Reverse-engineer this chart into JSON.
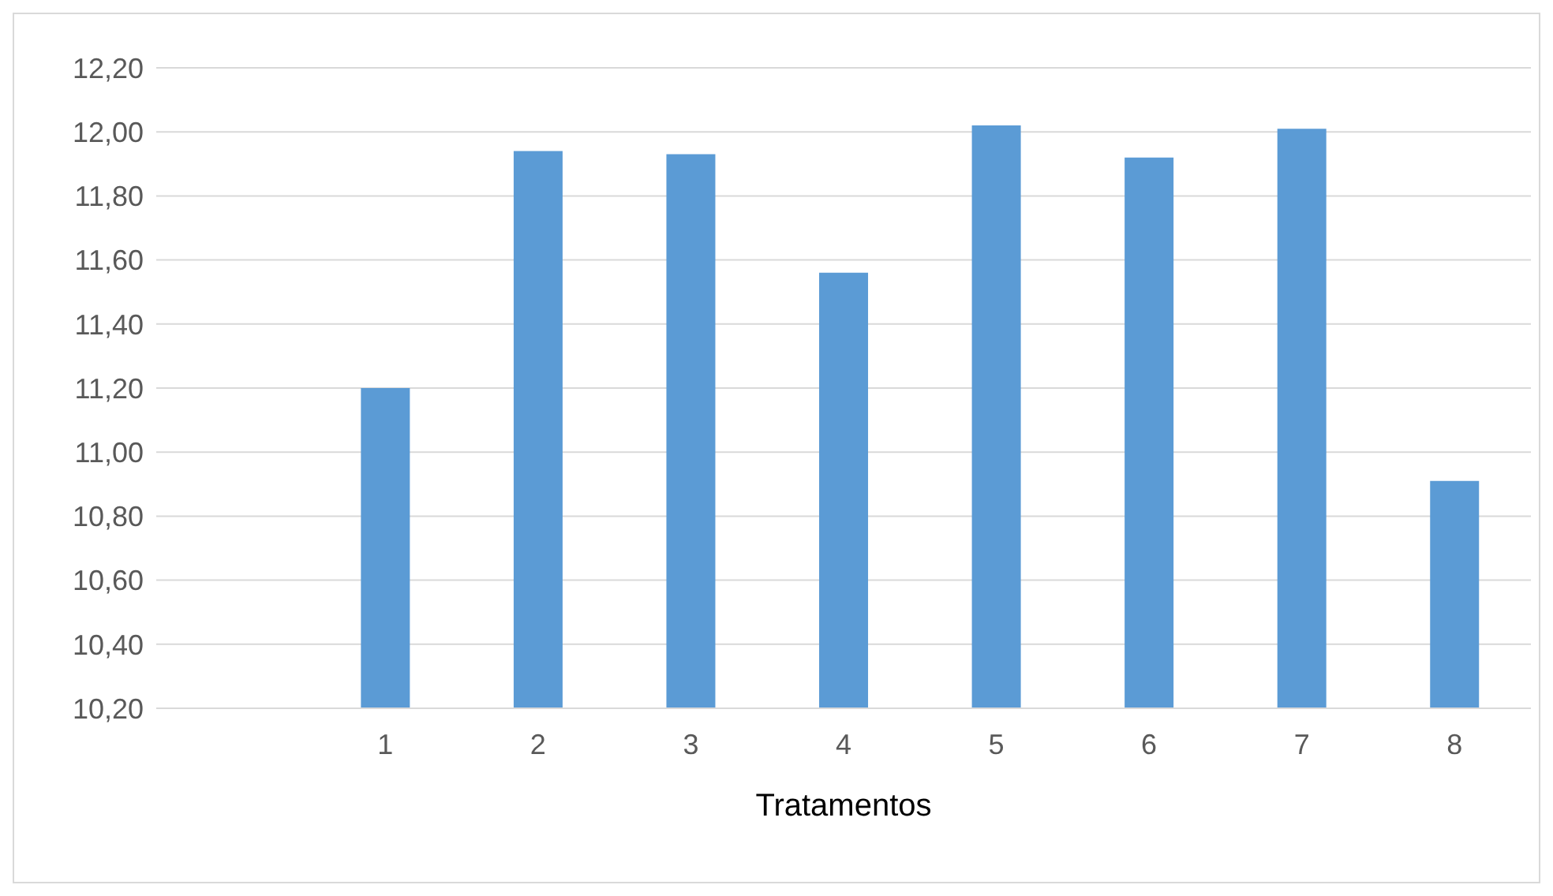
{
  "chart_data": {
    "type": "bar",
    "xlabel": "Tratamentos",
    "categories": [
      null,
      "1",
      "2",
      "3",
      "4",
      "5",
      "6",
      "7",
      "8"
    ],
    "values": [
      null,
      11.2,
      11.94,
      11.93,
      11.56,
      12.02,
      11.92,
      12.01,
      10.91
    ],
    "color": "#5b9bd5",
    "ylim": [
      10.2,
      12.2
    ],
    "yticks": [
      {
        "value": 10.2,
        "label": "10,20"
      },
      {
        "value": 10.4,
        "label": "10,40"
      },
      {
        "value": 10.6,
        "label": "10,60"
      },
      {
        "value": 10.8,
        "label": "10,80"
      },
      {
        "value": 11.0,
        "label": "11,00"
      },
      {
        "value": 11.2,
        "label": "11,20"
      },
      {
        "value": 11.4,
        "label": "11,40"
      },
      {
        "value": 11.6,
        "label": "11,60"
      },
      {
        "value": 11.8,
        "label": "11,80"
      },
      {
        "value": 12.0,
        "label": "12,00"
      },
      {
        "value": 12.2,
        "label": "12,20"
      }
    ],
    "grid": "y"
  }
}
